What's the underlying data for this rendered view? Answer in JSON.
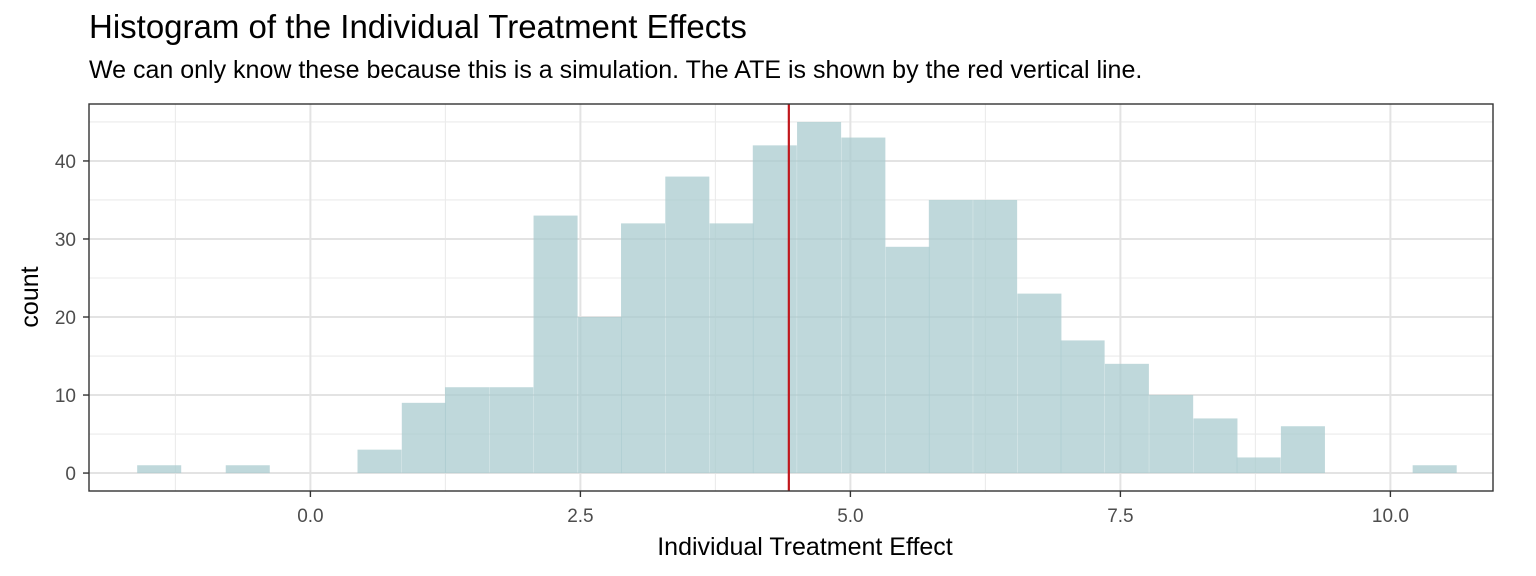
{
  "chart_data": {
    "type": "bar",
    "title": "Histogram of the Individual Treatment Effects",
    "subtitle": "We can only know these because this is a simulation.  The ATE is shown by the red vertical line.",
    "xlabel": "Individual Treatment Effect",
    "ylabel": "count",
    "xlim": [
      -2.05,
      10.95
    ],
    "ylim": [
      -2.3,
      47.3
    ],
    "x_ticks": [
      0.0,
      2.5,
      5.0,
      7.5,
      10.0
    ],
    "x_tick_labels": [
      "0.0",
      "2.5",
      "5.0",
      "7.5",
      "10.0"
    ],
    "y_ticks": [
      0,
      10,
      20,
      30,
      40
    ],
    "y_tick_labels": [
      "0",
      "10",
      "20",
      "30",
      "40"
    ],
    "bin_width": 0.4077,
    "bins": [
      {
        "x": -1.4,
        "count": 1
      },
      {
        "x": -0.99,
        "count": 0
      },
      {
        "x": -0.58,
        "count": 1
      },
      {
        "x": -0.18,
        "count": 0
      },
      {
        "x": 0.23,
        "count": 0
      },
      {
        "x": 0.64,
        "count": 3
      },
      {
        "x": 1.05,
        "count": 9
      },
      {
        "x": 1.45,
        "count": 11
      },
      {
        "x": 1.86,
        "count": 11
      },
      {
        "x": 2.27,
        "count": 33
      },
      {
        "x": 2.68,
        "count": 20
      },
      {
        "x": 3.08,
        "count": 32
      },
      {
        "x": 3.49,
        "count": 38
      },
      {
        "x": 3.9,
        "count": 32
      },
      {
        "x": 4.3,
        "count": 42
      },
      {
        "x": 4.71,
        "count": 45
      },
      {
        "x": 5.12,
        "count": 43
      },
      {
        "x": 5.53,
        "count": 29
      },
      {
        "x": 5.93,
        "count": 35
      },
      {
        "x": 6.34,
        "count": 35
      },
      {
        "x": 6.75,
        "count": 23
      },
      {
        "x": 7.15,
        "count": 17
      },
      {
        "x": 7.56,
        "count": 14
      },
      {
        "x": 7.97,
        "count": 10
      },
      {
        "x": 8.38,
        "count": 7
      },
      {
        "x": 8.78,
        "count": 2
      },
      {
        "x": 9.19,
        "count": 6
      },
      {
        "x": 9.6,
        "count": 0
      },
      {
        "x": 10.0,
        "count": 0
      },
      {
        "x": 10.41,
        "count": 1
      }
    ],
    "ate": 4.43,
    "ate_color": "#c0171c",
    "bar_color": "#a9cbcf",
    "panel_border_color": "#333333",
    "grid": true,
    "legend": "none"
  }
}
